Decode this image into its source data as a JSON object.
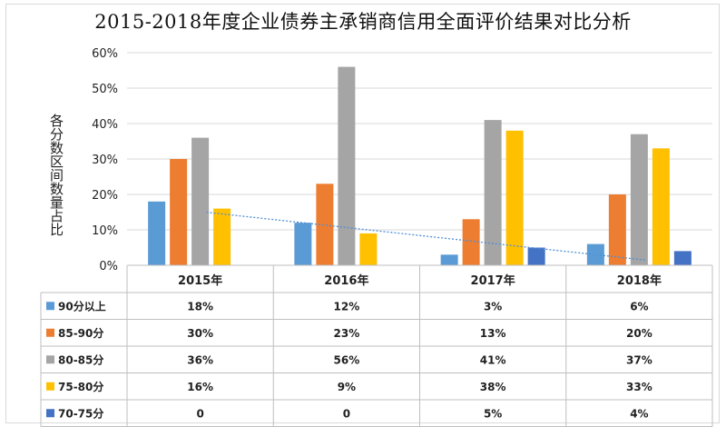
{
  "chart_data": {
    "type": "bar",
    "title": "2015-2018年度企业债券主承销商信用全面评价结果对比分析",
    "ylabel": "各分数区间数量占比",
    "categories": [
      "2015年",
      "2016年",
      "2017年",
      "2018年"
    ],
    "ylim": [
      0,
      60
    ],
    "yticks": [
      "0%",
      "10%",
      "20%",
      "30%",
      "40%",
      "50%",
      "60%"
    ],
    "grid": true,
    "series": [
      {
        "name": "90分以上",
        "color": "#5b9bd5",
        "values": [
          18,
          12,
          3,
          6
        ],
        "labels": [
          "18%",
          "12%",
          "3%",
          "6%"
        ]
      },
      {
        "name": "85-90分",
        "color": "#ed7d31",
        "values": [
          30,
          23,
          13,
          20
        ],
        "labels": [
          "30%",
          "23%",
          "13%",
          "20%"
        ]
      },
      {
        "name": "80-85分",
        "color": "#a5a5a5",
        "values": [
          36,
          56,
          41,
          37
        ],
        "labels": [
          "36%",
          "56%",
          "41%",
          "37%"
        ]
      },
      {
        "name": "75-80分",
        "color": "#ffc000",
        "values": [
          16,
          9,
          38,
          33
        ],
        "labels": [
          "16%",
          "9%",
          "38%",
          "33%"
        ]
      },
      {
        "name": "70-75分",
        "color": "#4472c4",
        "values": [
          0,
          0,
          5,
          4
        ],
        "labels": [
          "0",
          "0",
          "5%",
          "4%"
        ]
      }
    ],
    "trendline": {
      "series": "90分以上",
      "style": "dotted",
      "color": "#4f8fd6"
    }
  }
}
